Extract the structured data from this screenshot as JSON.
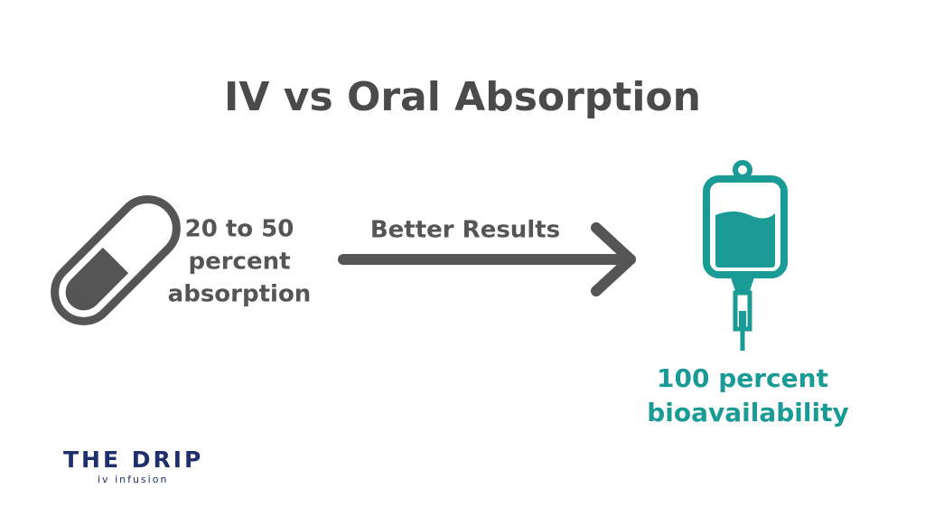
{
  "title": "IV vs Oral Absorption",
  "oral": {
    "lines": [
      "20 to 50",
      "percent",
      "absorption"
    ]
  },
  "arrow_label": "Better Results",
  "iv": {
    "lines": [
      "100 percent",
      "bioavailability"
    ]
  },
  "logo": {
    "name": "THE DRIP",
    "tagline": "iv infusion"
  }
}
